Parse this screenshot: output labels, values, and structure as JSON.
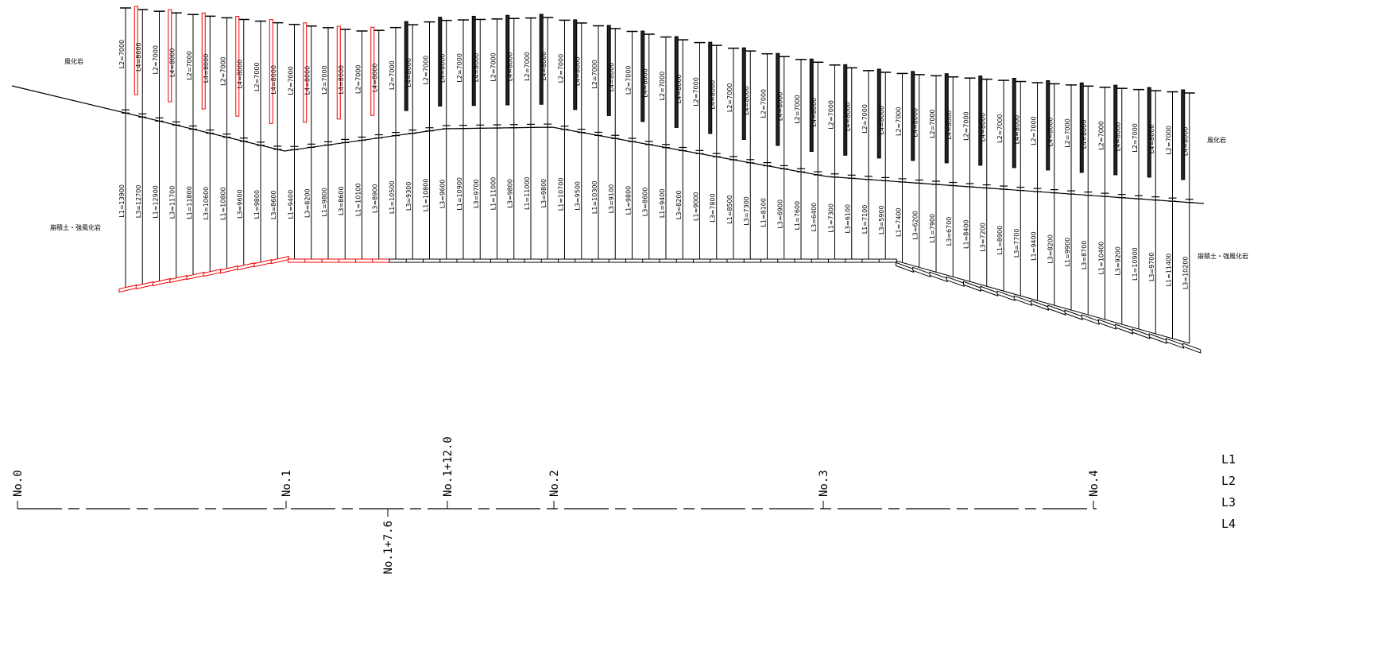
{
  "soil_labels": {
    "left_upper": "風化岩",
    "left_lower": "崩積土・強風化岩",
    "right_upper": "風化岩",
    "right_lower": "崩積土・強風化岩"
  },
  "anchors": {
    "upper": [
      "L2=7000",
      "L4=8000",
      "L2=7000",
      "L4=8000",
      "L2=7000",
      "L4=8000",
      "L2=7000",
      "L4=8000",
      "L2=7000",
      "L4=8000",
      "L2=7000",
      "L4=8000",
      "L2=7000",
      "L4=8000",
      "L2=7000",
      "L4=8000",
      "L2=7000",
      "L4=8000",
      "L2=7000",
      "L4=8000",
      "L2=7000",
      "L4=8000",
      "L2=7000",
      "L4=8000",
      "L2=7000",
      "L4=8000",
      "L2=7000",
      "L4=8000",
      "L2=7000",
      "L4=8000",
      "L2=7000",
      "L4=8000",
      "L2=7000",
      "L4=8000",
      "L2=7000",
      "L4=8000",
      "L2=7000",
      "L4=8000",
      "L2=7000",
      "L4=8000",
      "L2=7000",
      "L4=8000",
      "L2=7000",
      "L4=8000",
      "L2=7000",
      "L4=8000",
      "L2=7000",
      "L4=8000",
      "L2=7000",
      "L4=8000",
      "L2=7000",
      "L4=8000",
      "L2=7000",
      "L4=8000",
      "L2=7000",
      "L4=8000",
      "L2=7000",
      "L4=8000",
      "L2=7000",
      "L4=8000",
      "L2=7000",
      "L4=8000",
      "L2=7000",
      "L4=8000"
    ],
    "lower": [
      "L1=13900",
      "L3=12700",
      "L1=12900",
      "L3=11700",
      "L1=11800",
      "L3=10600",
      "L1=10800",
      "L3=9600",
      "L1=9800",
      "L3=8600",
      "L1=9400",
      "L3=8200",
      "L1=9800",
      "L3=8600",
      "L1=10100",
      "L3=8900",
      "L1=10500",
      "L3=9300",
      "L1=10800",
      "L3=9600",
      "L1=10900",
      "L3=9700",
      "L1=11000",
      "L3=9800",
      "L1=11000",
      "L3=9800",
      "L1=10700",
      "L3=9500",
      "L1=10300",
      "L3=9100",
      "L1=9800",
      "L3=8600",
      "L1=9400",
      "L3=8200",
      "L1=9000",
      "L3=7800",
      "L1=8500",
      "L3=7300",
      "L1=8100",
      "L3=6900",
      "L1=7600",
      "L3=6400",
      "L1=7300",
      "L3=6100",
      "L1=7100",
      "L3=5900",
      "L1=7400",
      "L3=6200",
      "L1=7900",
      "L3=6700",
      "L1=8400",
      "L3=7200",
      "L1=8900",
      "L3=7700",
      "L1=9400",
      "L3=8200",
      "L1=9900",
      "L3=8700",
      "L1=10400",
      "L3=9200",
      "L1=10900",
      "L3=9700",
      "L1=11400",
      "L3=10200"
    ]
  },
  "stations": [
    "No.0",
    "No.1",
    "No.1+7.6",
    "No.1+12.0",
    "No.2",
    "No.3",
    "No.4"
  ],
  "legend": [
    "L1",
    "L2",
    "L3",
    "L4"
  ]
}
